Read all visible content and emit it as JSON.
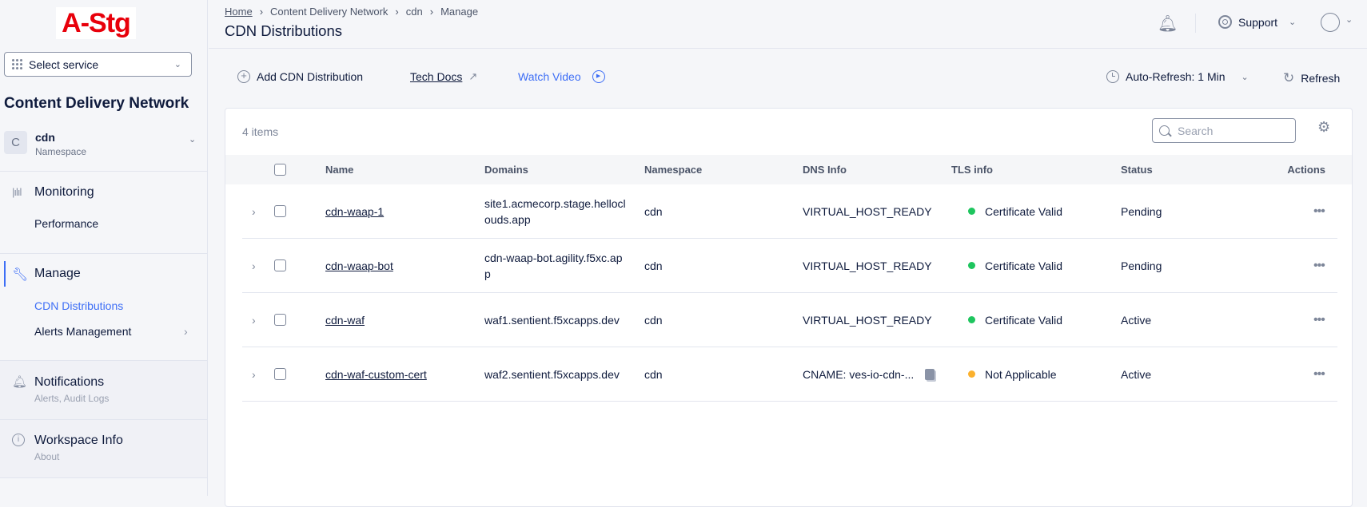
{
  "logo": "A-Stg",
  "sidebar": {
    "select_service": "Select service",
    "service_title": "Content Delivery Network",
    "namespace": {
      "avatar": "C",
      "name": "cdn",
      "label": "Namespace"
    },
    "sections": [
      {
        "title": "Monitoring",
        "items": [
          "Performance"
        ]
      },
      {
        "title": "Manage",
        "items": [
          "CDN Distributions",
          "Alerts Management"
        ],
        "active_item": "CDN Distributions"
      },
      {
        "title": "Notifications",
        "subtitle": "Alerts, Audit Logs"
      },
      {
        "title": "Workspace Info",
        "subtitle": "About"
      }
    ]
  },
  "header": {
    "breadcrumb": [
      "Home",
      "Content Delivery Network",
      "cdn",
      "Manage"
    ],
    "title": "CDN Distributions",
    "support": "Support"
  },
  "toolbar": {
    "add": "Add CDN Distribution",
    "tech_docs": "Tech Docs",
    "watch_video": "Watch Video",
    "auto_refresh": "Auto-Refresh: 1 Min",
    "refresh": "Refresh"
  },
  "table": {
    "count": "4 items",
    "search_placeholder": "Search",
    "columns": [
      "Name",
      "Domains",
      "Namespace",
      "DNS Info",
      "TLS info",
      "Status",
      "Actions"
    ],
    "rows": [
      {
        "name": "cdn-waap-1",
        "domains": "site1.acmecorp.stage.helloclouds.app",
        "namespace": "cdn",
        "dns": "VIRTUAL_HOST_READY",
        "tls": "Certificate Valid",
        "tls_color": "#1ec55e",
        "status": "Pending"
      },
      {
        "name": "cdn-waap-bot",
        "domains": "cdn-waap-bot.agility.f5xc.app",
        "namespace": "cdn",
        "dns": "VIRTUAL_HOST_READY",
        "tls": "Certificate Valid",
        "tls_color": "#1ec55e",
        "status": "Pending"
      },
      {
        "name": "cdn-waf",
        "domains": "waf1.sentient.f5xcapps.dev",
        "namespace": "cdn",
        "dns": "VIRTUAL_HOST_READY",
        "tls": "Certificate Valid",
        "tls_color": "#1ec55e",
        "status": "Active"
      },
      {
        "name": "cdn-waf-custom-cert",
        "domains": "waf2.sentient.f5xcapps.dev",
        "namespace": "cdn",
        "dns": "CNAME: ves-io-cdn-...",
        "tls": "Not Applicable",
        "tls_color": "#fbb12e",
        "status": "Active"
      }
    ]
  },
  "colors": {
    "accent": "#3d6ef6",
    "text": "#0f1b3d"
  }
}
